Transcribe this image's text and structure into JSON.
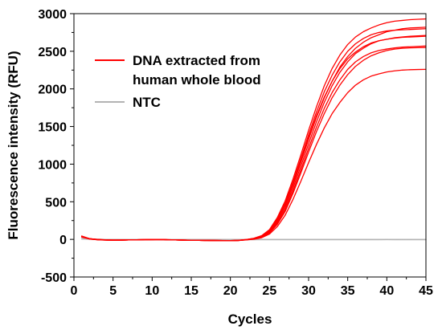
{
  "chart_data": {
    "type": "line",
    "title": "",
    "xlabel": "Cycles",
    "ylabel": "Fluorescence intensity (RFU)",
    "xlim": [
      0,
      45
    ],
    "ylim": [
      -500,
      3000
    ],
    "xticks": [
      0,
      5,
      10,
      15,
      20,
      25,
      30,
      35,
      40,
      45
    ],
    "xtick_labels": [
      "0",
      "5",
      "10",
      "15",
      "20",
      "25",
      "30",
      "35",
      "40",
      "45"
    ],
    "yticks": [
      -500,
      0,
      500,
      1000,
      1500,
      2000,
      2500,
      3000
    ],
    "ytick_labels": [
      "-500",
      "0",
      "500",
      "1000",
      "1500",
      "2000",
      "2500",
      "3000"
    ],
    "grid": false,
    "legend": {
      "placement": "top-left",
      "entries": [
        {
          "label_lines": [
            "DNA extracted from",
            "human whole blood"
          ],
          "color": "#ff0000"
        },
        {
          "label_lines": [
            "NTC"
          ],
          "color": "#b3b3b3"
        }
      ]
    },
    "x": [
      1,
      2,
      3,
      4,
      5,
      6,
      7,
      8,
      9,
      10,
      11,
      12,
      13,
      14,
      15,
      16,
      17,
      18,
      19,
      20,
      21,
      22,
      23,
      24,
      25,
      26,
      27,
      28,
      29,
      30,
      31,
      32,
      33,
      34,
      35,
      36,
      37,
      38,
      39,
      40,
      41,
      42,
      43,
      44,
      45
    ],
    "series": [
      {
        "color": "#ff0000",
        "values": [
          40,
          5,
          -5,
          -10,
          -12,
          -10,
          -8,
          -6,
          -4,
          -3,
          0,
          -5,
          -8,
          -10,
          -12,
          -13,
          -14,
          -15,
          -17,
          -18,
          -15,
          -5,
          10,
          40,
          110,
          250,
          450,
          720,
          1020,
          1330,
          1620,
          1880,
          2100,
          2290,
          2430,
          2540,
          2620,
          2680,
          2720,
          2760,
          2780,
          2800,
          2810,
          2815,
          2820
        ]
      },
      {
        "color": "#ff0000",
        "values": [
          35,
          10,
          0,
          -5,
          -8,
          -8,
          -6,
          -5,
          -4,
          -3,
          -2,
          -5,
          -8,
          -10,
          -12,
          -13,
          -14,
          -15,
          -16,
          -16,
          -12,
          -2,
          15,
          50,
          130,
          290,
          510,
          800,
          1120,
          1450,
          1760,
          2040,
          2270,
          2450,
          2590,
          2690,
          2760,
          2810,
          2850,
          2880,
          2900,
          2910,
          2920,
          2925,
          2930
        ]
      },
      {
        "color": "#ff0000",
        "values": [
          45,
          10,
          -2,
          -8,
          -10,
          -10,
          -8,
          -6,
          -4,
          -2,
          -1,
          -4,
          -7,
          -9,
          -11,
          -12,
          -13,
          -14,
          -15,
          -16,
          -13,
          -4,
          12,
          45,
          120,
          270,
          480,
          760,
          1070,
          1390,
          1690,
          1960,
          2180,
          2360,
          2500,
          2600,
          2670,
          2720,
          2750,
          2770,
          2780,
          2785,
          2790,
          2795,
          2800
        ]
      },
      {
        "color": "#ff0000",
        "values": [
          30,
          8,
          -3,
          -7,
          -9,
          -9,
          -7,
          -5,
          -4,
          -3,
          -2,
          -5,
          -8,
          -10,
          -12,
          -13,
          -14,
          -15,
          -16,
          -17,
          -14,
          -5,
          8,
          35,
          100,
          230,
          420,
          680,
          970,
          1270,
          1560,
          1820,
          2040,
          2220,
          2360,
          2470,
          2540,
          2600,
          2640,
          2660,
          2680,
          2690,
          2700,
          2705,
          2710
        ]
      },
      {
        "color": "#ff0000",
        "values": [
          42,
          6,
          -4,
          -9,
          -11,
          -10,
          -8,
          -6,
          -4,
          -3,
          -1,
          -4,
          -7,
          -9,
          -11,
          -13,
          -14,
          -15,
          -16,
          -17,
          -14,
          -5,
          6,
          30,
          90,
          210,
          390,
          640,
          920,
          1210,
          1490,
          1740,
          1950,
          2120,
          2260,
          2360,
          2430,
          2480,
          2510,
          2530,
          2545,
          2555,
          2560,
          2565,
          2570
        ]
      },
      {
        "color": "#ff0000",
        "values": [
          38,
          7,
          -3,
          -8,
          -10,
          -10,
          -8,
          -6,
          -4,
          -3,
          -2,
          -5,
          -8,
          -10,
          -12,
          -13,
          -14,
          -15,
          -16,
          -17,
          -14,
          -6,
          5,
          28,
          85,
          200,
          370,
          610,
          880,
          1160,
          1430,
          1670,
          1880,
          2050,
          2190,
          2300,
          2380,
          2440,
          2480,
          2510,
          2530,
          2540,
          2545,
          2548,
          2550
        ]
      },
      {
        "color": "#ff0000",
        "values": [
          36,
          9,
          -2,
          -7,
          -9,
          -9,
          -7,
          -5,
          -4,
          -3,
          -2,
          -5,
          -8,
          -10,
          -12,
          -13,
          -14,
          -15,
          -16,
          -16,
          -13,
          -3,
          12,
          42,
          115,
          260,
          465,
          740,
          1040,
          1350,
          1640,
          1890,
          2100,
          2270,
          2400,
          2490,
          2560,
          2610,
          2640,
          2660,
          2675,
          2685,
          2690,
          2695,
          2700
        ]
      },
      {
        "color": "#ff0000",
        "values": [
          32,
          4,
          -5,
          -9,
          -11,
          -10,
          -8,
          -6,
          -4,
          -3,
          -2,
          -5,
          -8,
          -10,
          -12,
          -13,
          -14,
          -15,
          -17,
          -18,
          -16,
          -8,
          2,
          22,
          70,
          170,
          320,
          530,
          770,
          1020,
          1260,
          1480,
          1670,
          1820,
          1950,
          2050,
          2120,
          2170,
          2200,
          2225,
          2240,
          2250,
          2255,
          2258,
          2260
        ]
      },
      {
        "color": "#b3b3b3",
        "values": [
          10,
          5,
          2,
          0,
          -2,
          -3,
          -3,
          -2,
          -2,
          -2,
          -2,
          -3,
          -3,
          -3,
          -3,
          -3,
          -3,
          -3,
          -3,
          -3,
          -3,
          -3,
          -3,
          -3,
          -3,
          -3,
          -3,
          -3,
          -3,
          -3,
          -3,
          -3,
          -3,
          -3,
          -3,
          -3,
          -3,
          -3,
          -3,
          -2,
          -3,
          -3,
          -3,
          -3,
          -3
        ]
      },
      {
        "color": "#b3b3b3",
        "values": [
          5,
          2,
          0,
          -2,
          -3,
          -3,
          -3,
          -3,
          -2,
          -2,
          -3,
          -3,
          -3,
          -3,
          -3,
          -3,
          -3,
          -4,
          -4,
          -4,
          -4,
          -4,
          -4,
          -4,
          -4,
          -4,
          -4,
          -4,
          -4,
          -4,
          -4,
          -4,
          -4,
          -4,
          -4,
          -4,
          -4,
          -3,
          -4,
          -4,
          -4,
          -4,
          -3,
          -4,
          -4
        ]
      },
      {
        "color": "#b3b3b3",
        "values": [
          8,
          3,
          1,
          -1,
          -2,
          -2,
          -2,
          -2,
          -2,
          -2,
          -2,
          -2,
          -2,
          -2,
          -2,
          -2,
          -2,
          -2,
          -2,
          -2,
          -2,
          -2,
          -2,
          -2,
          -2,
          -2,
          -2,
          -2,
          -2,
          -2,
          -2,
          -2,
          -2,
          -2,
          -2,
          -2,
          -2,
          -1,
          -2,
          -2,
          -2,
          -1,
          -2,
          -2,
          -2
        ]
      }
    ]
  }
}
